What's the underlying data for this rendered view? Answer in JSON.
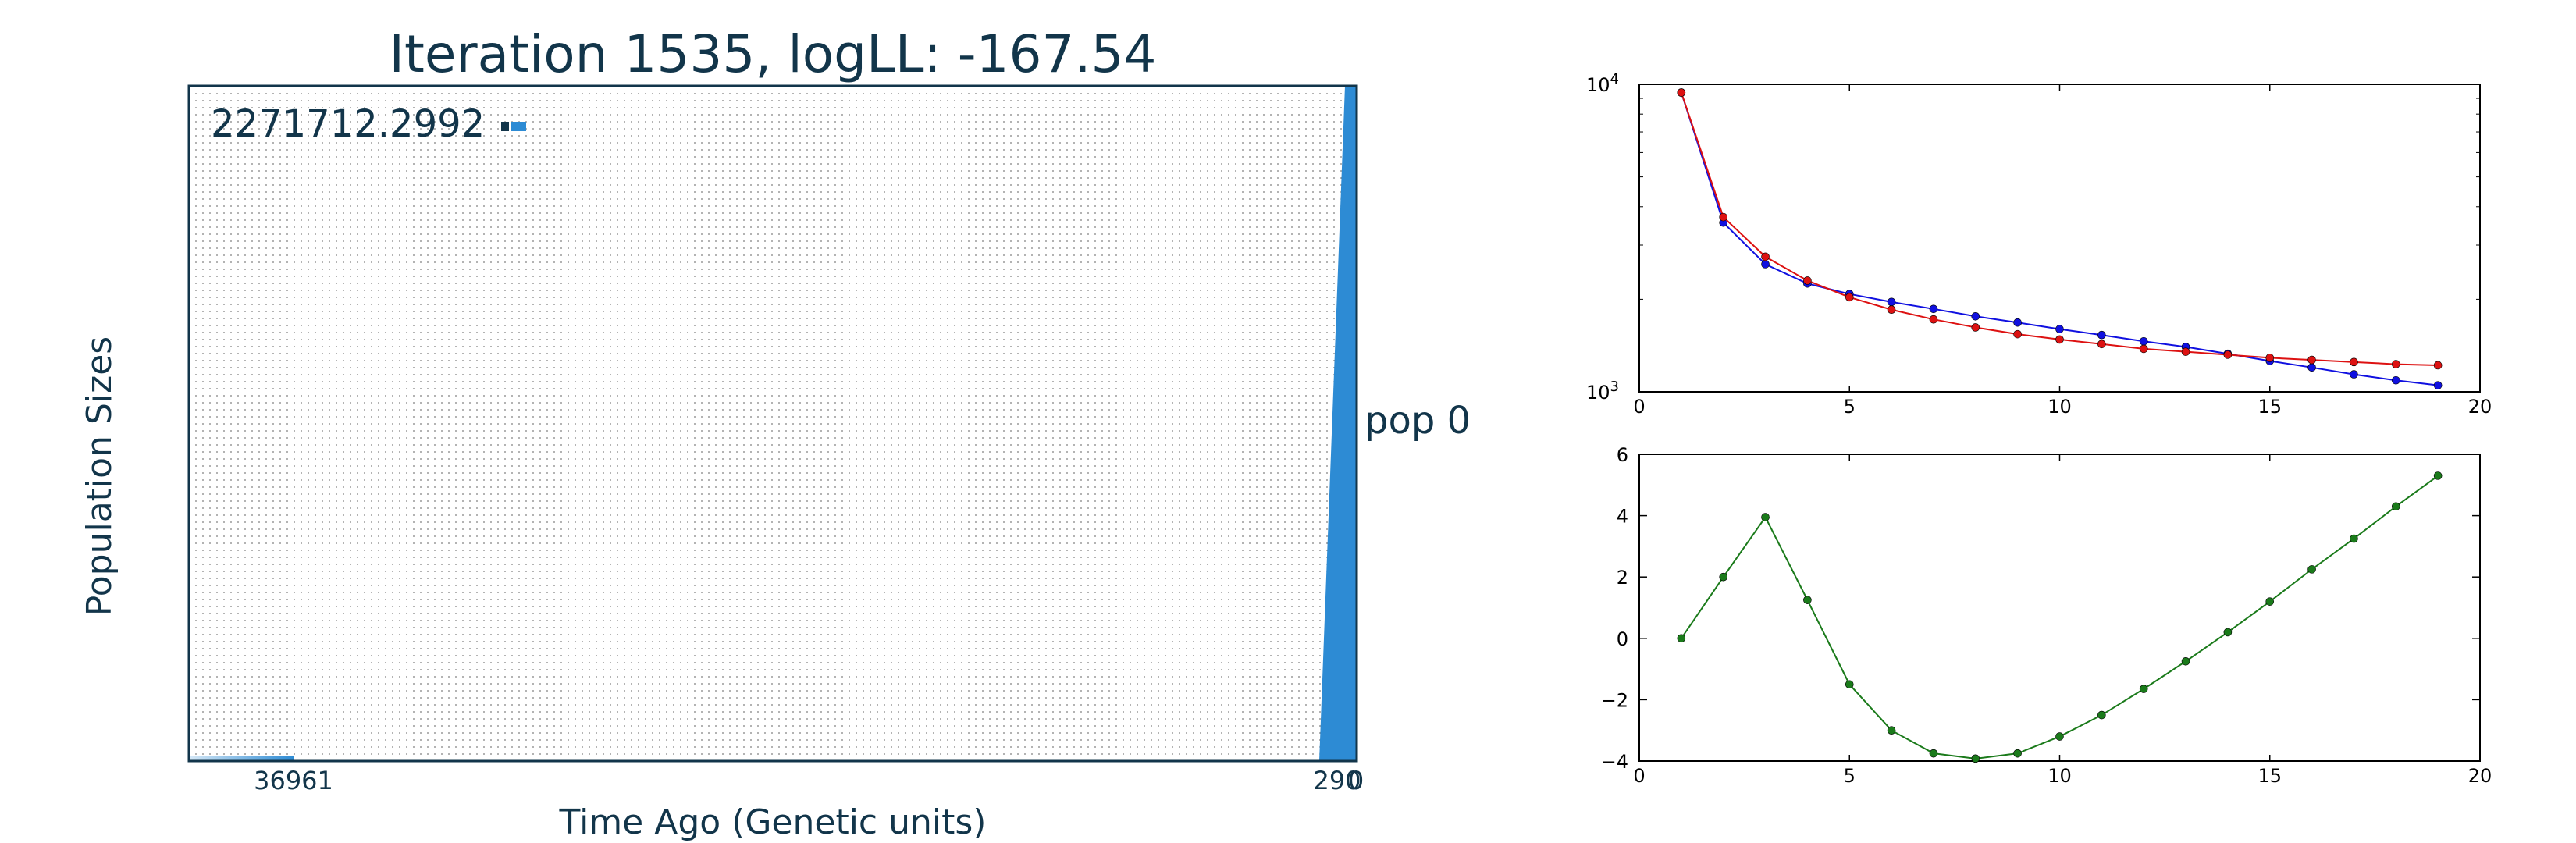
{
  "colors": {
    "main_fill": "#2d8bd4",
    "blue": "#1010e0",
    "red": "#dd1111",
    "green": "#1a7a1a"
  },
  "chart_data": [
    {
      "type": "area",
      "title": "Iteration 1535, logLL:    -167.54",
      "xlabel": "Time Ago (Genetic units)",
      "ylabel": "Population Sizes",
      "top_value_label": "2271712.2992",
      "series_label": "pop 0",
      "x_tick_labels": [
        "36961",
        "290",
        "0"
      ],
      "grid": true
    },
    {
      "type": "line",
      "y_scale": "log",
      "xlim": [
        0,
        20
      ],
      "ylim": [
        1000,
        10000
      ],
      "x_ticks": [
        "0",
        "5",
        "10",
        "15",
        "20"
      ],
      "y_ticks": [
        {
          "base": "10",
          "exp": "4",
          "value": 10000
        },
        {
          "base": "10",
          "exp": "3",
          "value": 1000
        }
      ],
      "x": [
        1,
        2,
        3,
        4,
        5,
        6,
        7,
        8,
        9,
        10,
        11,
        12,
        13,
        14,
        15,
        16,
        17,
        18,
        19
      ],
      "series": [
        {
          "color": "blue",
          "values": [
            9400,
            3550,
            2600,
            2250,
            2080,
            1960,
            1860,
            1760,
            1680,
            1600,
            1530,
            1460,
            1400,
            1330,
            1260,
            1200,
            1140,
            1090,
            1050
          ]
        },
        {
          "color": "red",
          "values": [
            9400,
            3700,
            2750,
            2300,
            2030,
            1850,
            1720,
            1620,
            1540,
            1480,
            1430,
            1380,
            1350,
            1320,
            1290,
            1270,
            1250,
            1230,
            1220
          ]
        }
      ]
    },
    {
      "type": "line",
      "xlim": [
        0,
        20
      ],
      "ylim": [
        -4,
        6
      ],
      "x_ticks": [
        "0",
        "5",
        "10",
        "15",
        "20"
      ],
      "y_ticks": [
        "6",
        "4",
        "2",
        "0",
        "−2",
        "−4"
      ],
      "x": [
        1,
        2,
        3,
        4,
        5,
        6,
        7,
        8,
        9,
        10,
        11,
        12,
        13,
        14,
        15,
        16,
        17,
        18,
        19
      ],
      "series": [
        {
          "color": "green",
          "values": [
            0.0,
            2.0,
            3.95,
            1.25,
            -1.5,
            -3.0,
            -3.75,
            -3.92,
            -3.75,
            -3.2,
            -2.5,
            -1.65,
            -0.75,
            0.2,
            1.2,
            2.25,
            3.25,
            4.3,
            5.3
          ]
        }
      ]
    }
  ]
}
